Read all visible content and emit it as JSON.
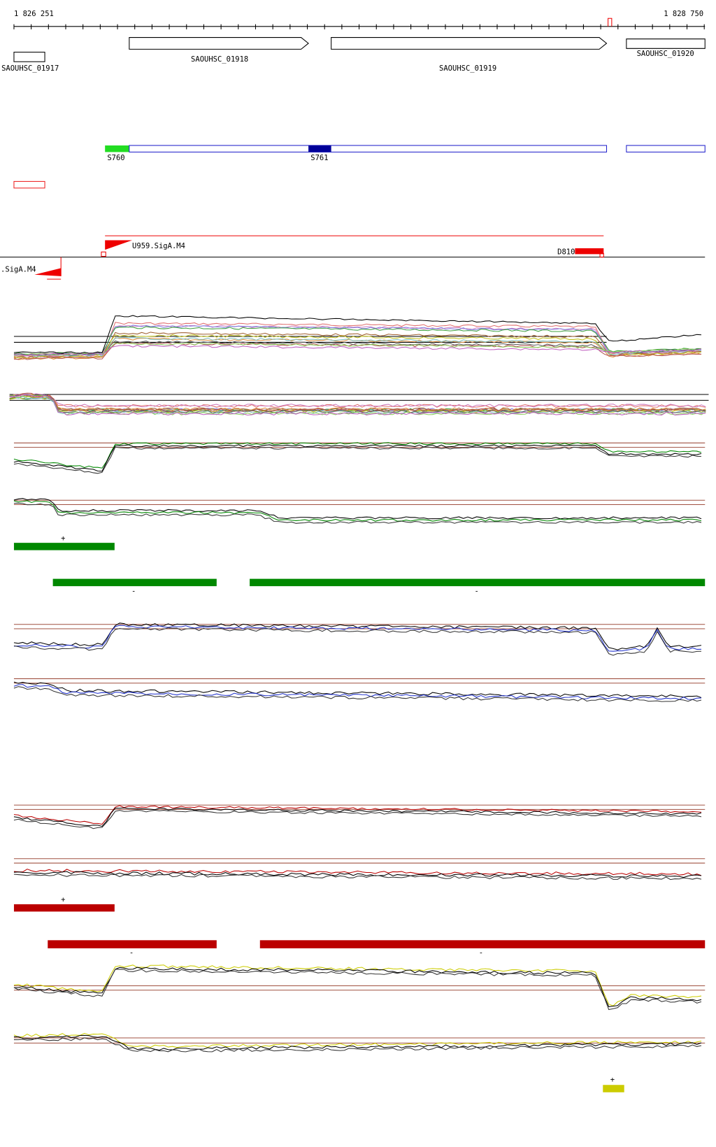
{
  "ruler": {
    "start": "1 826 251",
    "end": "1 828 750"
  },
  "genes": [
    "SAOUHSC_01917",
    "SAOUHSC_01918",
    "SAOUHSC_01919",
    "SAOUHSC_01920"
  ],
  "segments": [
    "S760",
    "S761"
  ],
  "promoters": [
    "U959.SigA.M4",
    ".SigA.M4"
  ],
  "terminators": [
    "D810"
  ],
  "strand_labels": [
    "+",
    "-",
    "-",
    "+",
    "-",
    "-",
    "+"
  ]
}
